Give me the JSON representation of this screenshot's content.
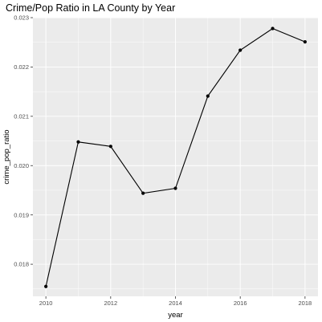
{
  "chart_data": {
    "type": "line",
    "title": "Crime/Pop Ratio in LA County by Year",
    "xlabel": "year",
    "ylabel": "crime_pop_ratio",
    "x": [
      2010,
      2011,
      2012,
      2013,
      2014,
      2015,
      2016,
      2017,
      2018
    ],
    "values": [
      0.01755,
      0.02048,
      0.02039,
      0.01944,
      0.01954,
      0.02141,
      0.02234,
      0.02278,
      0.02251
    ],
    "xlim": [
      2009.6,
      2018.4
    ],
    "ylim": [
      0.01735,
      0.023
    ],
    "xticks": [
      "2010",
      "2012",
      "2014",
      "2016",
      "2018"
    ],
    "yticks": [
      "0.018",
      "0.019",
      "0.020",
      "0.021",
      "0.022",
      "0.023"
    ],
    "grid": true,
    "colors": {
      "panel_background": "#ebebeb",
      "grid_major": "#ffffff",
      "line": "#000000",
      "tick_text": "#4d4d4d",
      "tick_mark": "#333333"
    }
  }
}
